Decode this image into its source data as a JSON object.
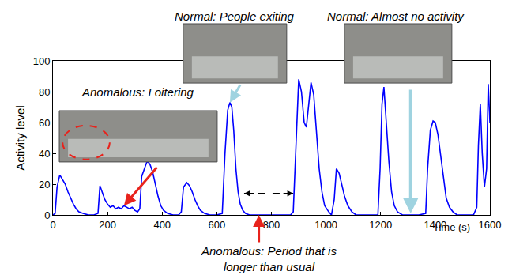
{
  "chart_data": {
    "type": "line",
    "x_label": "Time (s)",
    "y_label": "Activity level",
    "xlim": [
      0,
      1600
    ],
    "xticks": [
      0,
      200,
      400,
      600,
      800,
      1000,
      1200,
      1400,
      1600
    ],
    "ylim": [
      0,
      100
    ],
    "yticks": [
      0,
      20,
      40,
      60,
      80,
      100
    ],
    "grid": false,
    "color": "#0000ff",
    "x": [
      0,
      8,
      15,
      25,
      35,
      45,
      55,
      65,
      75,
      85,
      95,
      110,
      130,
      150,
      165,
      172,
      180,
      190,
      200,
      210,
      220,
      230,
      240,
      250,
      260,
      270,
      280,
      290,
      300,
      310,
      318,
      325,
      335,
      345,
      355,
      365,
      375,
      385,
      395,
      405,
      420,
      440,
      460,
      470,
      478,
      490,
      500,
      510,
      520,
      530,
      540,
      555,
      575,
      600,
      620,
      630,
      640,
      648,
      655,
      662,
      670,
      678,
      686,
      695,
      705,
      720,
      800,
      870,
      880,
      890,
      900,
      910,
      920,
      928,
      935,
      945,
      955,
      965,
      975,
      985,
      995,
      1010,
      1020,
      1030,
      1038,
      1048,
      1058,
      1068,
      1080,
      1095,
      1110,
      1150,
      1190,
      1198,
      1205,
      1212,
      1220,
      1230,
      1240,
      1250,
      1262,
      1280,
      1340,
      1365,
      1372,
      1382,
      1392,
      1400,
      1410,
      1420,
      1430,
      1440,
      1452,
      1465,
      1480,
      1540,
      1552,
      1558,
      1565,
      1572,
      1580,
      1588,
      1594,
      1600
    ],
    "values": [
      0,
      1,
      18,
      26,
      23,
      20,
      15,
      11,
      7,
      4,
      2,
      1,
      0,
      0,
      1,
      19,
      15,
      10,
      7,
      5,
      6,
      4,
      5,
      4,
      6,
      5,
      4,
      5,
      3,
      2,
      4,
      25,
      30,
      35,
      33,
      28,
      20,
      12,
      6,
      3,
      1,
      0,
      0,
      2,
      18,
      21,
      19,
      15,
      10,
      6,
      3,
      1,
      0,
      0,
      1,
      40,
      68,
      73,
      70,
      55,
      30,
      15,
      7,
      3,
      1,
      0,
      0,
      0,
      2,
      45,
      88,
      80,
      60,
      57,
      70,
      86,
      78,
      55,
      30,
      15,
      6,
      2,
      0,
      10,
      30,
      27,
      20,
      12,
      6,
      2,
      0,
      0,
      0,
      30,
      72,
      83,
      62,
      35,
      15,
      6,
      2,
      0,
      0,
      1,
      30,
      55,
      61,
      60,
      52,
      38,
      22,
      11,
      5,
      2,
      0,
      0,
      5,
      45,
      72,
      40,
      18,
      30,
      85,
      60
    ],
    "annotations": [
      {
        "text": "Normal: People exiting",
        "x": 648,
        "y": 73,
        "color": "#9fd3e0"
      },
      {
        "text": "Normal: Almost no activity",
        "x": 1310,
        "y": 1,
        "color": "#9fd3e0"
      },
      {
        "text": "Anomalous: Loitering",
        "x": 260,
        "y": 6,
        "color": "#e8231c"
      },
      {
        "text": "Anomalous: Period that is longer than usual",
        "x": [
          700,
          880
        ],
        "y": 14,
        "color": "#e8231c"
      }
    ]
  }
}
